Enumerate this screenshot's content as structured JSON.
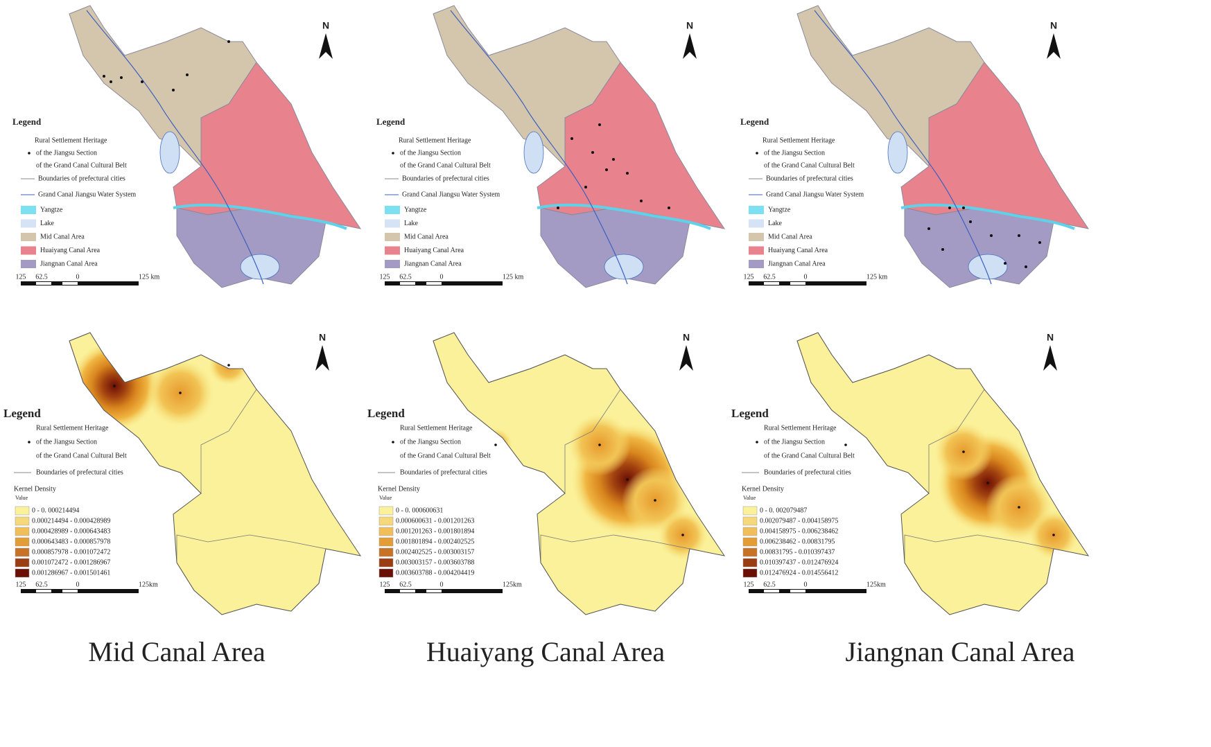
{
  "top_legend": {
    "title": "Legend",
    "items": [
      "Rural Settlement Heritage",
      "of the Jiangsu Section",
      "of the Grand Canal Cultural Belt",
      "Boundaries of prefectural cities",
      "Grand Canal Jiangsu Water System",
      "Yangtze",
      "Lake",
      "Mid Canal Area",
      "Huaiyang Canal Area",
      "Jiangnan Canal Area"
    ]
  },
  "bottom_legend": {
    "title": "Legend",
    "items": [
      "Rural Settlement Heritage",
      "of the Jiangsu Section",
      "of the Grand Canal Cultural Belt",
      "Boundaries of prefectural cities"
    ],
    "density_title": "Kernel Density",
    "density_subtitle": "Value"
  },
  "north": "N",
  "top_scale": [
    "125",
    "62.5",
    "0",
    "125 km"
  ],
  "bottom_scale": [
    "125",
    "62.5",
    "0",
    "125km"
  ],
  "columns": [
    {
      "caption": "Mid Canal Area",
      "classes": [
        "0 - 0. 000214494",
        "0.000214494 - 0.000428989",
        "0.000428989 - 0.000643483",
        "0.000643483 - 0.000857978",
        "0.000857978 - 0.001072472",
        "0.001072472 - 0.001286967",
        "0.001286967 - 0.001501461"
      ]
    },
    {
      "caption": "Huaiyang Canal Area",
      "classes": [
        "0 - 0. 000600631",
        "0.000600631 - 0.001201263",
        "0.001201263 - 0.001801894",
        "0.001801894 - 0.002402525",
        "0.002402525 - 0.003003157",
        "0.003003157 - 0.003603788",
        "0.003603788 - 0.004204419"
      ]
    },
    {
      "caption": "Jiangnan Canal Area",
      "classes": [
        "0 - 0. 002079487",
        "0.002079487 - 0.004158975",
        "0.004158975 - 0.006238462",
        "0.006238462 - 0.00831795",
        "0.00831795 - 0.010397437",
        "0.010397437 - 0.012476924",
        "0.012476924 - 0.014556412"
      ]
    }
  ]
}
